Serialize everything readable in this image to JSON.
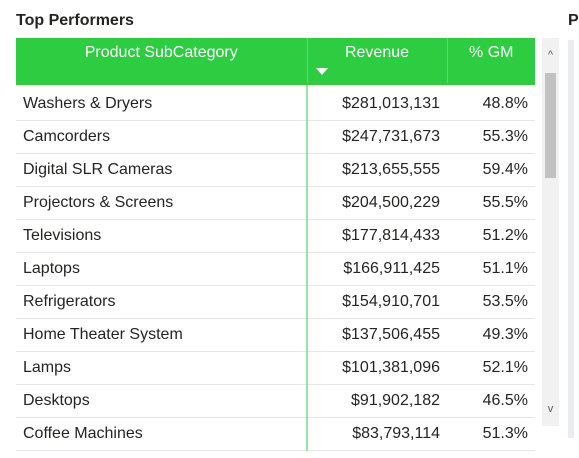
{
  "visual": {
    "title": "Top Performers",
    "next_visual_title_fragment": "P"
  },
  "table": {
    "columns": [
      {
        "key": "subcategory",
        "label": "Product SubCategory"
      },
      {
        "key": "revenue",
        "label": "Revenue",
        "sorted": "descending"
      },
      {
        "key": "gm",
        "label": "% GM"
      }
    ],
    "rows": [
      {
        "subcategory": "Washers & Dryers",
        "revenue": "$281,013,131",
        "gm": "48.8%"
      },
      {
        "subcategory": "Camcorders",
        "revenue": "$247,731,673",
        "gm": "55.3%"
      },
      {
        "subcategory": "Digital SLR Cameras",
        "revenue": "$213,655,555",
        "gm": "59.4%"
      },
      {
        "subcategory": "Projectors & Screens",
        "revenue": "$204,500,229",
        "gm": "55.5%"
      },
      {
        "subcategory": "Televisions",
        "revenue": "$177,814,433",
        "gm": "51.2%"
      },
      {
        "subcategory": "Laptops",
        "revenue": "$166,911,425",
        "gm": "51.1%"
      },
      {
        "subcategory": "Refrigerators",
        "revenue": "$154,910,701",
        "gm": "53.5%"
      },
      {
        "subcategory": "Home Theater System",
        "revenue": "$137,506,455",
        "gm": "49.3%"
      },
      {
        "subcategory": "Lamps",
        "revenue": "$101,381,096",
        "gm": "52.1%"
      },
      {
        "subcategory": "Desktops",
        "revenue": "$91,902,182",
        "gm": "46.5%"
      },
      {
        "subcategory": "Coffee Machines",
        "revenue": "$83,793,114",
        "gm": "51.3%"
      }
    ]
  },
  "scrollbar": {
    "up_icon": "chevron-up-icon",
    "down_icon": "chevron-down-icon",
    "up_glyph": "^",
    "down_glyph": "v"
  },
  "colors": {
    "header_bg": "#2ecc40",
    "header_text": "#ffffff",
    "divider_green": "#9be3a4",
    "text": "#252423"
  }
}
